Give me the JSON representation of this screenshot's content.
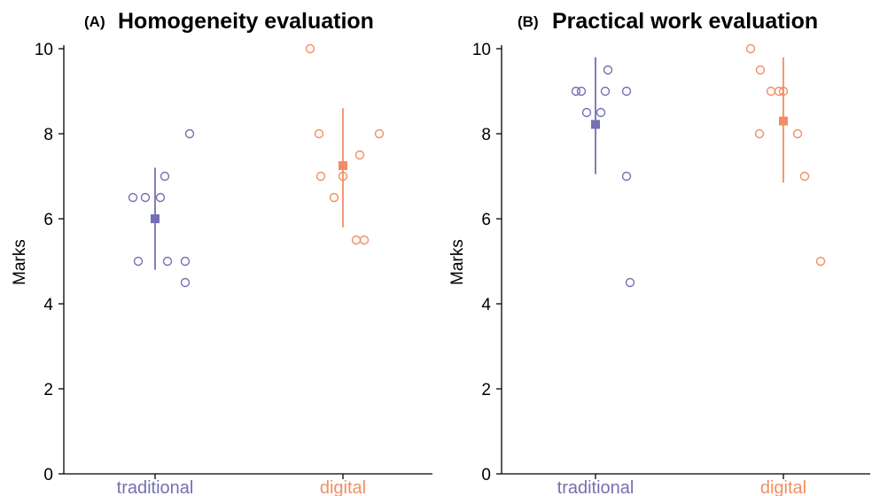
{
  "chart_data": [
    {
      "type": "scatter",
      "tag": "(A)",
      "title": "Homogeneity evaluation",
      "ylabel": "Marks",
      "ylim": [
        0,
        10
      ],
      "yticks": [
        "0",
        "2",
        "4",
        "6",
        "8",
        "10"
      ],
      "categories": [
        "traditional",
        "digital"
      ],
      "series": [
        {
          "category": "traditional",
          "color": "#7570b3",
          "points": [
            6.5,
            6.5,
            6.5,
            7,
            8,
            5,
            5,
            5,
            4.5
          ],
          "mean": 6.0,
          "range": [
            4.8,
            7.2
          ]
        },
        {
          "category": "digital",
          "color": "#f28e64",
          "points": [
            10,
            8,
            7,
            6.5,
            7,
            7.5,
            5.5,
            5.5,
            8
          ],
          "mean": 7.25,
          "range": [
            5.8,
            8.6
          ]
        }
      ]
    },
    {
      "type": "scatter",
      "tag": "(B)",
      "title": "Practical work evaluation",
      "ylabel": "Marks",
      "ylim": [
        0,
        10
      ],
      "yticks": [
        "0",
        "2",
        "4",
        "6",
        "8",
        "10"
      ],
      "categories": [
        "traditional",
        "digital"
      ],
      "series": [
        {
          "category": "traditional",
          "color": "#7570b3",
          "points": [
            9,
            9,
            8.5,
            8.5,
            9.5,
            9,
            9,
            7,
            4.5
          ],
          "mean": 8.22,
          "range": [
            7.05,
            9.8
          ]
        },
        {
          "category": "digital",
          "color": "#f28e64",
          "points": [
            10,
            9.5,
            8,
            9,
            9,
            9,
            8,
            7,
            5
          ],
          "mean": 8.3,
          "range": [
            6.85,
            9.8
          ]
        }
      ]
    }
  ]
}
